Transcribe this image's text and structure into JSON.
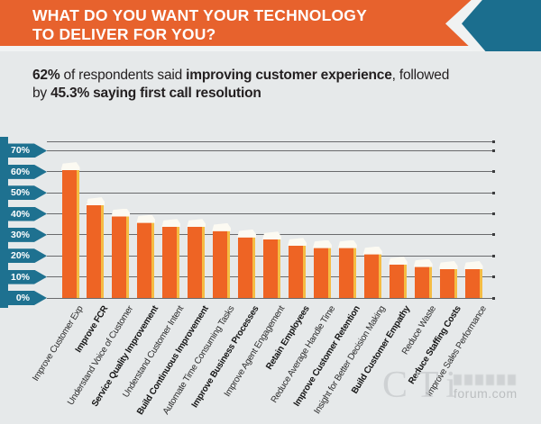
{
  "header": {
    "title_line1": "WHAT DO YOU WANT YOUR TECHNOLOGY",
    "title_line2": "TO DELIVER FOR YOU?"
  },
  "subtitle": {
    "segments": [
      {
        "text": "62%",
        "bold": true
      },
      {
        "text": " of respondents said ",
        "bold": false
      },
      {
        "text": "improving customer experience",
        "bold": true
      },
      {
        "text": ", followed by ",
        "bold": false
      },
      {
        "text": "45.3% saying first call resolution",
        "bold": true
      }
    ]
  },
  "chart_data": {
    "type": "bar",
    "title": "WHAT DO YOU WANT YOUR TECHNOLOGY TO DELIVER FOR YOU?",
    "categories": [
      "Improve Customer Exp",
      "Improve FCR",
      "Understand Voice of Customer",
      "Service Quality Improvement",
      "Understand Customer Intent",
      "Build Continuous Improvement",
      "Automate Time Consuming Tasks",
      "Improve Business Processes",
      "Improve Agent Engagement",
      "Retain Employees",
      "Reduce Average Handle Time",
      "Improve Customer Retention",
      "Insight for Better Decision Making",
      "Build Customer Empathy",
      "Reduce Waste",
      "Reduce Staffing Costs",
      "Improve Sales Performance"
    ],
    "values": [
      62,
      45.3,
      40,
      37,
      35,
      35,
      33,
      30,
      29,
      26,
      25,
      25,
      22,
      17,
      16,
      15,
      15
    ],
    "bold_categories": [
      false,
      true,
      false,
      true,
      false,
      true,
      false,
      true,
      false,
      true,
      false,
      true,
      false,
      true,
      false,
      true,
      false
    ],
    "y_ticks": [
      "0%",
      "10%",
      "20%",
      "30%",
      "40%",
      "50%",
      "60%",
      "70%"
    ],
    "ylim": [
      0,
      70
    ],
    "grid": true,
    "legend_position": "none",
    "xlabel": "",
    "ylabel": ""
  },
  "colors": {
    "banner_orange": "#E7622D",
    "teal": "#1B6E8E",
    "background_gray": "#E6E9EA",
    "bar_orange": "#EE6424",
    "bar_edge_yellow": "#F5BC43",
    "bar_cap_white": "#FCFAF2",
    "gridline": "#696A6C",
    "tick_ribbon": "#1E7190"
  },
  "watermark": {
    "logo": "CTi",
    "site": "forum.com"
  }
}
